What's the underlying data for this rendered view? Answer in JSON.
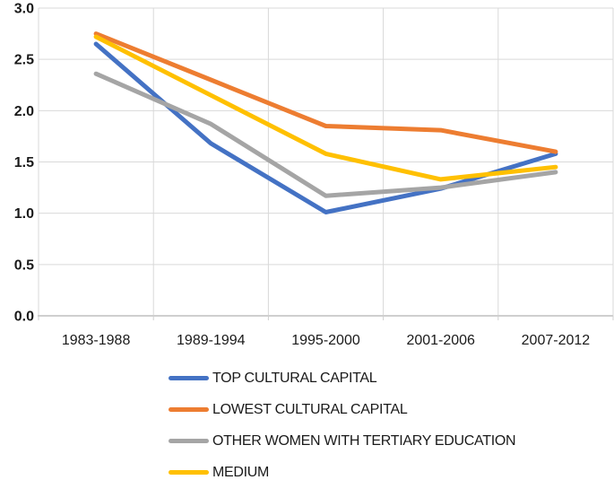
{
  "chart_data": {
    "type": "line",
    "title": "",
    "xlabel": "",
    "ylabel": "",
    "categories": [
      "1983-1988",
      "1989-1994",
      "1995-2000",
      "2001-2006",
      "2007-2012"
    ],
    "series": [
      {
        "name": "TOP CULTURAL CAPITAL",
        "color": "#4472C4",
        "values": [
          2.65,
          1.68,
          1.01,
          1.24,
          1.58
        ]
      },
      {
        "name": "LOWEST CULTURAL CAPITAL",
        "color": "#ED7D31",
        "values": [
          2.75,
          2.3,
          1.85,
          1.81,
          1.6
        ]
      },
      {
        "name": "OTHER WOMEN WITH TERTIARY EDUCATION",
        "color": "#A5A5A5",
        "values": [
          2.36,
          1.87,
          1.17,
          1.25,
          1.4
        ]
      },
      {
        "name": "MEDIUM",
        "color": "#FFC000",
        "values": [
          2.72,
          2.15,
          1.58,
          1.33,
          1.45
        ]
      }
    ],
    "ylim": [
      0.0,
      3.0
    ],
    "y_tick_step": 0.5,
    "y_tick_labels": [
      "0.0",
      "0.5",
      "1.0",
      "1.5",
      "2.0",
      "2.5",
      "3.0"
    ],
    "grid": true,
    "legend_position": "bottom-left"
  },
  "colors": {
    "background": "#FFFFFF",
    "gridline": "#D9D9D9",
    "axis_line": "#CFCFCF",
    "axis_text": "#1A1A1A",
    "legend_text": "#1A1A1A"
  }
}
